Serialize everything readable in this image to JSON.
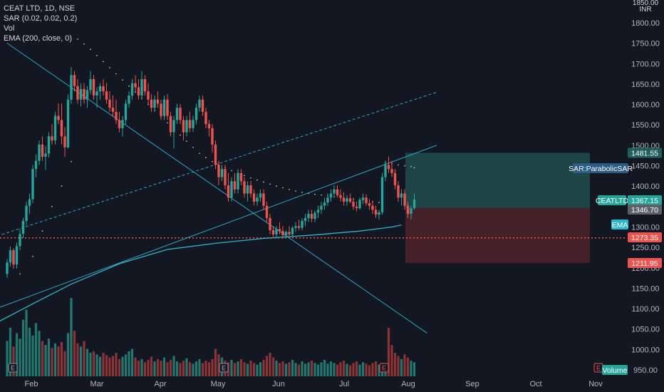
{
  "header": {
    "symbol_line": "CEAT LTD, 1D, NSE",
    "sar_line": "SAR (0.02, 0.02, 0.2)",
    "vol_line": "Vol",
    "ema_line": "EMA (200, close, 0)"
  },
  "currency_top": "1850.00",
  "currency": "INR",
  "colors": {
    "background": "#131722",
    "up": "#26a69a",
    "down": "#ef5350",
    "vol_up": "#22786f",
    "vol_down": "#8b3336",
    "trend": "#28a7c2",
    "ema": "#2fb5c9",
    "sar": "#b4b8c4",
    "profit_zone": "#1f4a49",
    "loss_zone": "#4a2229",
    "red_line": "#ef5350"
  },
  "chart_data": {
    "type": "candlestick",
    "symbol": "CEAT LTD",
    "timeframe": "1D",
    "exchange": "NSE",
    "y_axis": {
      "range": [
        950,
        1850
      ],
      "ticks": [
        "1800.00",
        "1750.00",
        "1700.00",
        "1650.00",
        "1600.00",
        "1550.00",
        "1500.00",
        "1450.00",
        "1400.00",
        "1350.00",
        "1300.00",
        "1250.00",
        "1200.00",
        "1150.00",
        "1100.00",
        "1050.00",
        "1000.00",
        "950.00"
      ]
    },
    "x_axis": {
      "labels": [
        "Feb",
        "Mar",
        "Apr",
        "May",
        "Jun",
        "Jul",
        "Aug",
        "Sep",
        "Oct",
        "Nov"
      ]
    },
    "price_tags": [
      {
        "label": "1481.55",
        "value": 1481.55,
        "color": "#1f5e5a"
      },
      {
        "label": "SAR:ParabolicSAR",
        "value": 1443,
        "color": "#2a5a86"
      },
      {
        "label": "CEATLTD",
        "value": 1367.15,
        "color": "#26a69a"
      },
      {
        "label": "1367.15",
        "value": 1367.15,
        "color": "#26a69a"
      },
      {
        "label": "1346.70",
        "value": 1346.7,
        "color": "#5d606b"
      },
      {
        "label": "EMA",
        "value": 1302,
        "color": "#2fb5c9"
      },
      {
        "label": "1273.35",
        "value": 1273.35,
        "color": "#ef5350"
      },
      {
        "label": "1211.95",
        "value": 1211.95,
        "color": "#ef5350"
      },
      {
        "label": "Volume",
        "value": 952,
        "color": "#26a69a"
      }
    ],
    "long_position": {
      "entry": 1346.7,
      "target": 1481.55,
      "stop": 1211.95
    },
    "support_level": 1273.35,
    "ohlc": [
      [
        1185,
        1222,
        1176,
        1213
      ],
      [
        1213,
        1252,
        1203,
        1243
      ],
      [
        1243,
        1248,
        1198,
        1208
      ],
      [
        1208,
        1262,
        1198,
        1253
      ],
      [
        1253,
        1295,
        1243,
        1283
      ],
      [
        1283,
        1322,
        1273,
        1315
      ],
      [
        1315,
        1362,
        1305,
        1352
      ],
      [
        1352,
        1382,
        1332,
        1368
      ],
      [
        1368,
        1452,
        1358,
        1442
      ],
      [
        1442,
        1478,
        1422,
        1462
      ],
      [
        1462,
        1512,
        1452,
        1502
      ],
      [
        1502,
        1522,
        1462,
        1472
      ],
      [
        1472,
        1498,
        1440,
        1480
      ],
      [
        1480,
        1532,
        1470,
        1522
      ],
      [
        1522,
        1552,
        1502,
        1512
      ],
      [
        1512,
        1582,
        1502,
        1572
      ],
      [
        1572,
        1602,
        1552,
        1562
      ],
      [
        1562,
        1602,
        1502,
        1522
      ],
      [
        1522,
        1545,
        1472,
        1495
      ],
      [
        1495,
        1625,
        1492,
        1612
      ],
      [
        1612,
        1692,
        1602,
        1672
      ],
      [
        1672,
        1682,
        1632,
        1645
      ],
      [
        1645,
        1662,
        1602,
        1612
      ],
      [
        1612,
        1652,
        1595,
        1638
      ],
      [
        1638,
        1652,
        1602,
        1612
      ],
      [
        1612,
        1645,
        1592,
        1635
      ],
      [
        1635,
        1682,
        1625,
        1662
      ],
      [
        1662,
        1672,
        1612,
        1622
      ],
      [
        1622,
        1642,
        1592,
        1632
      ],
      [
        1632,
        1652,
        1612,
        1645
      ],
      [
        1645,
        1662,
        1622,
        1632
      ],
      [
        1632,
        1652,
        1602,
        1612
      ],
      [
        1612,
        1632,
        1582,
        1592
      ],
      [
        1592,
        1622,
        1572,
        1582
      ],
      [
        1582,
        1612,
        1552,
        1562
      ],
      [
        1562,
        1582,
        1532,
        1542
      ],
      [
        1542,
        1572,
        1522,
        1562
      ],
      [
        1562,
        1612,
        1552,
        1602
      ],
      [
        1602,
        1632,
        1592,
        1622
      ],
      [
        1622,
        1662,
        1612,
        1652
      ],
      [
        1652,
        1672,
        1632,
        1642
      ],
      [
        1642,
        1662,
        1612,
        1622
      ],
      [
        1622,
        1682,
        1612,
        1662
      ],
      [
        1662,
        1672,
        1622,
        1632
      ],
      [
        1632,
        1652,
        1602,
        1612
      ],
      [
        1612,
        1625,
        1582,
        1592
      ],
      [
        1592,
        1622,
        1582,
        1612
      ],
      [
        1612,
        1632,
        1592,
        1602
      ],
      [
        1602,
        1612,
        1562,
        1572
      ],
      [
        1572,
        1622,
        1562,
        1612
      ],
      [
        1612,
        1625,
        1562,
        1572
      ],
      [
        1572,
        1582,
        1522,
        1532
      ],
      [
        1532,
        1572,
        1492,
        1562
      ],
      [
        1562,
        1602,
        1552,
        1592
      ],
      [
        1592,
        1602,
        1552,
        1562
      ],
      [
        1562,
        1572,
        1512,
        1532
      ],
      [
        1532,
        1572,
        1522,
        1562
      ],
      [
        1562,
        1582,
        1532,
        1542
      ],
      [
        1542,
        1572,
        1532,
        1562
      ],
      [
        1562,
        1602,
        1552,
        1592
      ],
      [
        1592,
        1622,
        1582,
        1612
      ],
      [
        1612,
        1622,
        1572,
        1582
      ],
      [
        1582,
        1592,
        1542,
        1552
      ],
      [
        1552,
        1562,
        1522,
        1542
      ],
      [
        1542,
        1552,
        1482,
        1502
      ],
      [
        1502,
        1512,
        1442,
        1452
      ],
      [
        1452,
        1462,
        1402,
        1422
      ],
      [
        1422,
        1452,
        1412,
        1442
      ],
      [
        1442,
        1452,
        1392,
        1402
      ],
      [
        1402,
        1432,
        1362,
        1372
      ],
      [
        1372,
        1422,
        1362,
        1412
      ],
      [
        1412,
        1432,
        1382,
        1392
      ],
      [
        1392,
        1442,
        1382,
        1432
      ],
      [
        1432,
        1442,
        1402,
        1412
      ],
      [
        1412,
        1422,
        1372,
        1382
      ],
      [
        1382,
        1412,
        1362,
        1402
      ],
      [
        1402,
        1412,
        1372,
        1382
      ],
      [
        1382,
        1392,
        1352,
        1362
      ],
      [
        1362,
        1382,
        1352,
        1372
      ],
      [
        1372,
        1392,
        1362,
        1382
      ],
      [
        1382,
        1392,
        1342,
        1352
      ],
      [
        1352,
        1362,
        1312,
        1322
      ],
      [
        1322,
        1332,
        1282,
        1292
      ],
      [
        1292,
        1302,
        1272,
        1282
      ],
      [
        1282,
        1302,
        1272,
        1295
      ],
      [
        1295,
        1312,
        1282,
        1290
      ],
      [
        1290,
        1302,
        1272,
        1280
      ],
      [
        1280,
        1292,
        1272,
        1288
      ],
      [
        1288,
        1302,
        1278,
        1282
      ],
      [
        1282,
        1302,
        1276,
        1298
      ],
      [
        1298,
        1312,
        1288,
        1302
      ],
      [
        1302,
        1318,
        1292,
        1298
      ],
      [
        1298,
        1322,
        1292,
        1315
      ],
      [
        1315,
        1332,
        1302,
        1322
      ],
      [
        1322,
        1342,
        1312,
        1332
      ],
      [
        1332,
        1342,
        1312,
        1320
      ],
      [
        1320,
        1340,
        1312,
        1335
      ],
      [
        1335,
        1352,
        1322,
        1342
      ],
      [
        1342,
        1362,
        1332,
        1352
      ],
      [
        1352,
        1372,
        1342,
        1360
      ],
      [
        1360,
        1382,
        1352,
        1372
      ],
      [
        1372,
        1392,
        1362,
        1382
      ],
      [
        1382,
        1402,
        1372,
        1392
      ],
      [
        1392,
        1402,
        1372,
        1378
      ],
      [
        1378,
        1392,
        1362,
        1372
      ],
      [
        1372,
        1385,
        1352,
        1362
      ],
      [
        1362,
        1378,
        1352,
        1370
      ],
      [
        1370,
        1382,
        1358,
        1362
      ],
      [
        1362,
        1372,
        1342,
        1350
      ],
      [
        1350,
        1362,
        1338,
        1346
      ],
      [
        1346,
        1372,
        1342,
        1366
      ],
      [
        1366,
        1382,
        1356,
        1372
      ],
      [
        1372,
        1380,
        1352,
        1358
      ],
      [
        1358,
        1368,
        1342,
        1352
      ],
      [
        1352,
        1362,
        1332,
        1342
      ],
      [
        1342,
        1352,
        1322,
        1330
      ],
      [
        1330,
        1342,
        1318,
        1336
      ],
      [
        1336,
        1432,
        1330,
        1422
      ],
      [
        1422,
        1462,
        1412,
        1452
      ],
      [
        1452,
        1472,
        1432,
        1442
      ],
      [
        1442,
        1462,
        1422,
        1432
      ],
      [
        1432,
        1442,
        1392,
        1402
      ],
      [
        1402,
        1412,
        1362,
        1372
      ],
      [
        1372,
        1392,
        1352,
        1382
      ],
      [
        1382,
        1392,
        1342,
        1352
      ],
      [
        1352,
        1362,
        1322,
        1332
      ],
      [
        1332,
        1352,
        1318,
        1346
      ],
      [
        1346,
        1382,
        1342,
        1367
      ]
    ],
    "volume": [
      0.45,
      0.62,
      0.38,
      0.55,
      0.48,
      0.72,
      0.85,
      0.62,
      0.52,
      0.68,
      0.58,
      0.45,
      0.4,
      0.48,
      0.36,
      0.42,
      0.38,
      0.44,
      0.32,
      0.55,
      1.0,
      0.58,
      0.42,
      0.38,
      0.45,
      0.35,
      0.3,
      0.32,
      0.28,
      0.25,
      0.3,
      0.27,
      0.24,
      0.26,
      0.3,
      0.22,
      0.25,
      0.28,
      0.32,
      0.35,
      0.24,
      0.2,
      0.22,
      0.18,
      0.21,
      0.25,
      0.19,
      0.22,
      0.2,
      0.24,
      0.18,
      0.21,
      0.26,
      0.19,
      0.17,
      0.2,
      0.23,
      0.18,
      0.16,
      0.19,
      0.22,
      0.17,
      0.2,
      0.18,
      0.22,
      0.35,
      0.28,
      0.24,
      0.2,
      0.18,
      0.21,
      0.17,
      0.19,
      0.22,
      0.18,
      0.16,
      0.2,
      0.17,
      0.15,
      0.18,
      0.21,
      0.26,
      0.3,
      0.24,
      0.2,
      0.17,
      0.19,
      0.16,
      0.18,
      0.21,
      0.17,
      0.15,
      0.19,
      0.16,
      0.18,
      0.2,
      0.17,
      0.15,
      0.18,
      0.21,
      0.16,
      0.19,
      0.17,
      0.15,
      0.18,
      0.2,
      0.16,
      0.14,
      0.17,
      0.19,
      0.15,
      0.18,
      0.16,
      0.14,
      0.17,
      0.19,
      0.15,
      0.17,
      0.14,
      0.62,
      0.4,
      0.3,
      0.26,
      0.22,
      0.28,
      0.24,
      0.2,
      0.18
    ],
    "lines": {
      "downtrend": [
        [
          0,
          1750
        ],
        [
          131,
          1040
        ]
      ],
      "uptrend": [
        [
          -12,
          1075
        ],
        [
          134,
          1500
        ]
      ],
      "channel_upper": [
        [
          -12,
          1255
        ],
        [
          134,
          1630
        ]
      ],
      "ema": [
        [
          -12,
          1030
        ],
        [
          10,
          1120
        ],
        [
          20,
          1160
        ],
        [
          35,
          1210
        ],
        [
          50,
          1245
        ],
        [
          65,
          1260
        ],
        [
          80,
          1272
        ],
        [
          95,
          1280
        ],
        [
          110,
          1290
        ],
        [
          120,
          1300
        ],
        [
          123,
          1305
        ]
      ]
    },
    "sar_dots": [
      [
        4,
        1185
      ],
      [
        8,
        1228
      ],
      [
        11,
        1290
      ],
      [
        14,
        1350
      ],
      [
        17,
        1400
      ],
      [
        20,
        1460
      ],
      [
        22,
        1760
      ],
      [
        24,
        1748
      ],
      [
        26,
        1735
      ],
      [
        28,
        1720
      ],
      [
        30,
        1705
      ],
      [
        32,
        1690
      ],
      [
        34,
        1675
      ],
      [
        36,
        1660
      ],
      [
        38,
        1645
      ],
      [
        40,
        1630
      ],
      [
        42,
        1615
      ],
      [
        44,
        1600
      ],
      [
        46,
        1585
      ],
      [
        48,
        1570
      ],
      [
        50,
        1555
      ],
      [
        52,
        1540
      ],
      [
        54,
        1525
      ],
      [
        56,
        1510
      ],
      [
        58,
        1495
      ],
      [
        60,
        1480
      ],
      [
        62,
        1470
      ],
      [
        64,
        1460
      ],
      [
        66,
        1452
      ],
      [
        68,
        1445
      ],
      [
        70,
        1438
      ],
      [
        72,
        1432
      ],
      [
        74,
        1426
      ],
      [
        76,
        1420
      ],
      [
        78,
        1415
      ],
      [
        80,
        1410
      ],
      [
        82,
        1405
      ],
      [
        84,
        1400
      ],
      [
        86,
        1396
      ],
      [
        88,
        1392
      ],
      [
        90,
        1388
      ],
      [
        92,
        1385
      ],
      [
        94,
        1382
      ],
      [
        96,
        1380
      ],
      [
        98,
        1378
      ],
      [
        100,
        1376
      ],
      [
        102,
        1374
      ],
      [
        104,
        1372
      ],
      [
        106,
        1370
      ],
      [
        108,
        1368
      ],
      [
        110,
        1366
      ],
      [
        112,
        1364
      ],
      [
        114,
        1362
      ],
      [
        116,
        1360
      ],
      [
        118,
        1458
      ],
      [
        120,
        1455
      ],
      [
        122,
        1452
      ],
      [
        124,
        1450
      ],
      [
        126,
        1448
      ],
      [
        127,
        1445
      ]
    ]
  }
}
